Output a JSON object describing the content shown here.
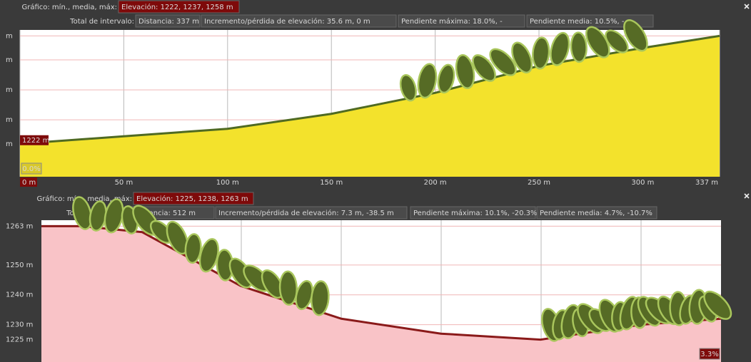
{
  "chart_data": [
    {
      "type": "area",
      "header": {
        "graph_label": "Gráfico: mín., media, máx:",
        "elevation": "Elevación: 1222, 1237, 1258 m",
        "range_label": "Total de intervalo:",
        "distance": "Distancia: 337 m",
        "gain_loss": "Incremento/pérdida de elevación: 35.6 m, 0 m",
        "max_slope": "Pendiente máxima: 18.0%, -",
        "avg_slope": "Pendiente media: 10.5%, -"
      },
      "x": [
        0,
        50,
        100,
        150,
        200,
        250,
        300,
        337
      ],
      "values": [
        1222,
        1224.5,
        1227,
        1232,
        1239,
        1248,
        1254,
        1258
      ],
      "xlim": [
        0,
        337
      ],
      "xticks": [
        {
          "value": 0,
          "label": "0 m"
        },
        {
          "value": 50,
          "label": "50 m"
        },
        {
          "value": 100,
          "label": "100 m"
        },
        {
          "value": 150,
          "label": "150 m"
        },
        {
          "value": 200,
          "label": "200 m"
        },
        {
          "value": 250,
          "label": "250 m"
        },
        {
          "value": 300,
          "label": "300 m"
        },
        {
          "value": 337,
          "label": "337 m"
        }
      ],
      "ylim": [
        1211,
        1260
      ],
      "yticks": [
        {
          "value": 1222,
          "label": "m"
        },
        {
          "value": 1230,
          "label": "m"
        },
        {
          "value": 1240,
          "label": "m"
        },
        {
          "value": 1250,
          "label": "m"
        },
        {
          "value": 1258,
          "label": "m"
        }
      ],
      "color": "#4f6a22",
      "fill": "#f3e22c",
      "cursor_label": "1222 m",
      "cursor_slope": "0.0%"
    },
    {
      "type": "area",
      "header": {
        "graph_label": "Gráfico: mín., media, máx:",
        "elevation": "Elevación: 1225, 1238, 1263 m",
        "range_label": "Total de intervalo:",
        "distance": "Distancia: 512 m",
        "gain_loss": "Incremento/pérdida de elevación: 7.3 m, -38.5 m",
        "max_slope": "Pendiente máxima: 10.1%, -20.3%",
        "avg_slope": "Pendiente media: 4.7%, -10.7%"
      },
      "x": [
        0,
        30,
        76,
        150,
        226,
        301,
        376,
        452,
        512
      ],
      "values": [
        1263,
        1263,
        1261,
        1243,
        1232,
        1227,
        1225,
        1230,
        1232
      ],
      "xlim": [
        0,
        512
      ],
      "ylim": [
        1217.5,
        1265
      ],
      "yticks": [
        {
          "value": 1263,
          "label": "1263 m"
        },
        {
          "value": 1250,
          "label": "1250 m"
        },
        {
          "value": 1240,
          "label": "1240 m"
        },
        {
          "value": 1230,
          "label": "1230 m"
        },
        {
          "value": 1225,
          "label": "1225 m"
        }
      ],
      "color": "#8a1a1a",
      "fill": "#f9c3c7",
      "cursor_slope": "3.3%"
    }
  ]
}
